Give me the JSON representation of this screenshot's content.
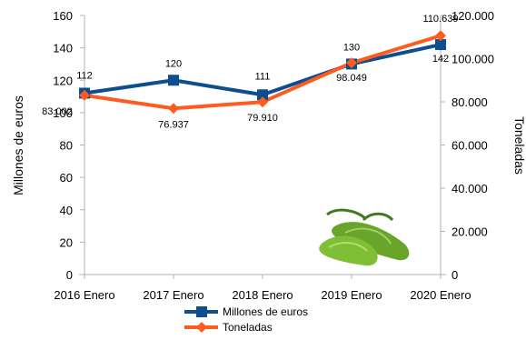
{
  "chart_data": {
    "type": "line",
    "categories": [
      "2016 Enero",
      "2017 Enero",
      "2018 Enero",
      "2019 Enero",
      "2020 Enero"
    ],
    "series": [
      {
        "name": "Millones de euros",
        "axis": "left",
        "color": "#0e4d8e",
        "marker": "square",
        "values": [
          112,
          120,
          111,
          130,
          142
        ],
        "labels": [
          "112",
          "120",
          "111",
          "130",
          "142"
        ]
      },
      {
        "name": "Toneladas",
        "axis": "right",
        "color": "#ff5a1f",
        "marker": "diamond",
        "values": [
          83002,
          76937,
          79910,
          98049,
          110639
        ],
        "labels": [
          "83.002",
          "76.937",
          "79.910",
          "98.049",
          "110.639"
        ]
      }
    ],
    "y_left": {
      "label": "Millones de euros",
      "range": [
        0,
        160
      ],
      "ticks": [
        "0",
        "20",
        "40",
        "60",
        "80",
        "100",
        "120",
        "140",
        "160"
      ]
    },
    "y_right": {
      "label": "Toneladas",
      "range": [
        0,
        120000
      ],
      "ticks": [
        "0",
        "20.000",
        "40.000",
        "60.000",
        "80.000",
        "100.000",
        "120.000"
      ]
    },
    "grid": false,
    "legend": "bottom",
    "decoration": "green-peppers-image"
  }
}
